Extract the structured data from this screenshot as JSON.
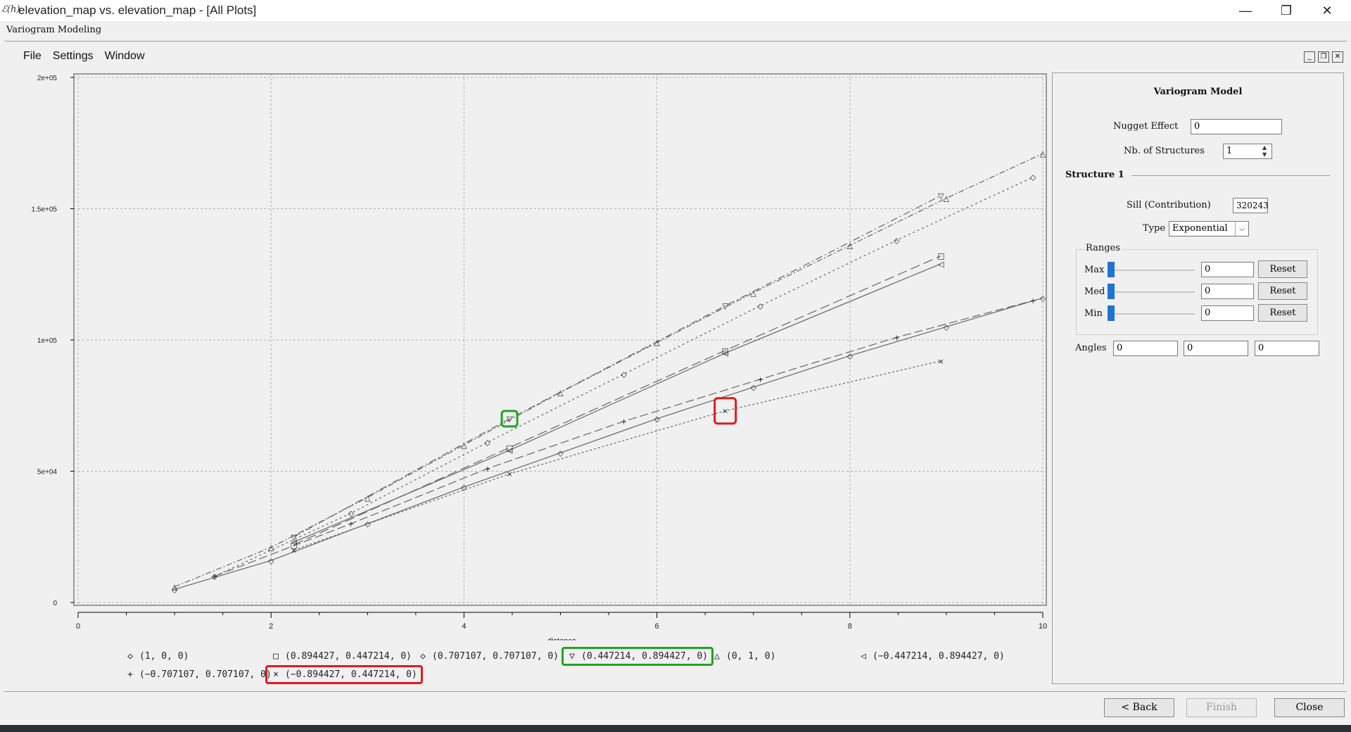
{
  "window": {
    "icon_text": "ℰ(h)",
    "title": "elevation_map vs. elevation_map - [All Plots]",
    "subtitle": "Variogram Modeling",
    "controls": {
      "minimize": "—",
      "restore": "❐",
      "close": "✕"
    }
  },
  "menu": [
    "File",
    "Settings",
    "Window"
  ],
  "mdi_controls": {
    "minimize": "_",
    "restore": "❐",
    "close": "✕"
  },
  "chart_data": {
    "type": "scatter",
    "xlabel": "distance",
    "ylabel": "",
    "xlim": [
      0,
      10
    ],
    "ylim": [
      0,
      200000
    ],
    "xticks": [
      "0",
      "2",
      "4",
      "6",
      "8",
      "10"
    ],
    "yticks": [
      "0",
      "5e+04",
      "1e+05",
      "1.5e+05",
      "2e+05"
    ],
    "grid": true,
    "legend_position": "bottom",
    "series": [
      {
        "name": "(1,  0,  0)",
        "marker": "◇",
        "dash": "",
        "points": [
          [
            1,
            5000
          ],
          [
            2,
            16000
          ],
          [
            3,
            30000
          ],
          [
            4,
            44000
          ],
          [
            5,
            57000
          ],
          [
            6,
            70000
          ],
          [
            7,
            82000
          ],
          [
            8,
            94000
          ],
          [
            9,
            105000
          ],
          [
            10,
            116000
          ]
        ]
      },
      {
        "name": "(0.894427,  0.447214,  0)",
        "marker": "□",
        "dash": "14 6",
        "points": [
          [
            2.236,
            22000
          ],
          [
            4.472,
            59000
          ],
          [
            6.708,
            96000
          ],
          [
            8.944,
            132000
          ]
        ]
      },
      {
        "name": "(0.707107,  0.707107,  0)",
        "marker": "◇",
        "dash": "3 4",
        "points": [
          [
            1.414,
            10000
          ],
          [
            2.828,
            34000
          ],
          [
            4.243,
            61000
          ],
          [
            5.657,
            87000
          ],
          [
            7.071,
            113000
          ],
          [
            8.485,
            138000
          ],
          [
            9.899,
            162000
          ]
        ]
      },
      {
        "name": "(0.447214,  0.894427,  0)",
        "marker": "▽",
        "dash": "10 4 2 4",
        "points": [
          [
            2.236,
            25000
          ],
          [
            4.472,
            70000
          ],
          [
            6.708,
            113000
          ],
          [
            8.944,
            155000
          ]
        ]
      },
      {
        "name": "(0,  1,  0)",
        "marker": "△",
        "dash": "8 3 2 3",
        "points": [
          [
            1,
            6000
          ],
          [
            2,
            21000
          ],
          [
            3,
            40000
          ],
          [
            4,
            60000
          ],
          [
            5,
            80000
          ],
          [
            6,
            99000
          ],
          [
            7,
            118000
          ],
          [
            8,
            136000
          ],
          [
            9,
            154000
          ],
          [
            10,
            171000
          ]
        ]
      },
      {
        "name": "(−0.447214,  0.894427,  0)",
        "marker": "◁",
        "dash": "",
        "points": [
          [
            2.236,
            23000
          ],
          [
            4.472,
            58000
          ],
          [
            6.708,
            95000
          ],
          [
            8.944,
            129000
          ]
        ]
      },
      {
        "name": "(−0.707107,  0.707107,  0)",
        "marker": "+",
        "dash": "12 5",
        "points": [
          [
            1.414,
            10000
          ],
          [
            2.828,
            30000
          ],
          [
            4.243,
            51000
          ],
          [
            5.657,
            69000
          ],
          [
            7.071,
            85000
          ],
          [
            8.485,
            101000
          ],
          [
            9.899,
            115000
          ]
        ]
      },
      {
        "name": "(−0.894427,  0.447214,  0)",
        "marker": "×",
        "dash": "3 3",
        "points": [
          [
            2.236,
            20000
          ],
          [
            4.472,
            49000
          ],
          [
            6.708,
            73000
          ],
          [
            8.944,
            92000
          ]
        ]
      }
    ],
    "highlights": [
      {
        "series": 3,
        "point": 1,
        "color": "#1fa51f"
      },
      {
        "series": 7,
        "point": 2,
        "color": "#e41a1a"
      }
    ]
  },
  "legend_highlight": {
    "green_series": 3,
    "red_series": 7
  },
  "panel": {
    "title": "Variogram Model",
    "nugget_label": "Nugget Effect",
    "nugget_value": "0",
    "nb_structures_label": "Nb. of Structures",
    "nb_structures_value": "1",
    "structure_title": "Structure 1",
    "sill_label": "Sill (Contribution)",
    "sill_value": "320243",
    "type_label": "Type",
    "type_value": "Exponential",
    "ranges_label": "Ranges",
    "ranges": [
      {
        "label": "Max",
        "value": "0",
        "reset": "Reset",
        "level": 0
      },
      {
        "label": "Med",
        "value": "0",
        "reset": "Reset",
        "level": 0
      },
      {
        "label": "Min",
        "value": "0",
        "reset": "Reset",
        "level": 0
      }
    ],
    "angles_label": "Angles",
    "angles": [
      "0",
      "0",
      "0"
    ]
  },
  "buttons": {
    "back": "< Back",
    "finish": "Finish",
    "close": "Close"
  },
  "colors": {
    "highlight_green": "#1fa51f",
    "highlight_red": "#e41a1a",
    "slider": "#1976d2"
  }
}
